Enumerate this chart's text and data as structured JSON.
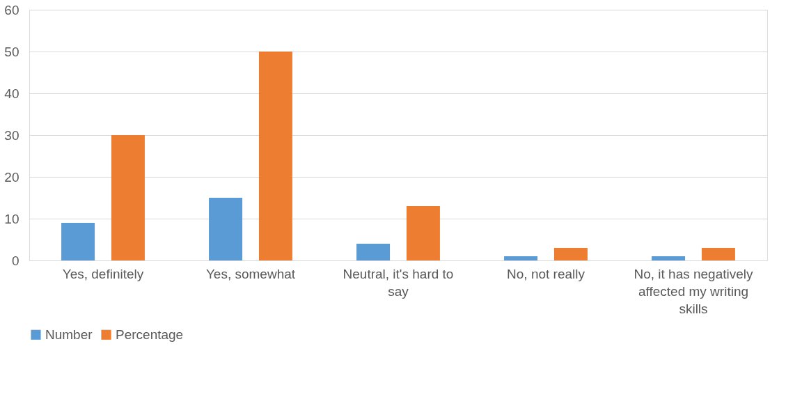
{
  "chart_data": {
    "type": "bar",
    "categories": [
      "Yes, definitely",
      "Yes, somewhat",
      "Neutral, it's hard to say",
      "No, not really",
      "No, it has negatively affected my writing skills"
    ],
    "series": [
      {
        "name": "Number",
        "color": "#5b9bd5",
        "values": [
          9,
          15,
          4,
          1,
          1
        ]
      },
      {
        "name": "Percentage",
        "color": "#ed7d31",
        "values": [
          30,
          50,
          13,
          3,
          3
        ]
      }
    ],
    "ylim": [
      0,
      60
    ],
    "yticks": [
      0,
      10,
      20,
      30,
      40,
      50,
      60
    ],
    "grid": "y",
    "legend": "bottom"
  }
}
